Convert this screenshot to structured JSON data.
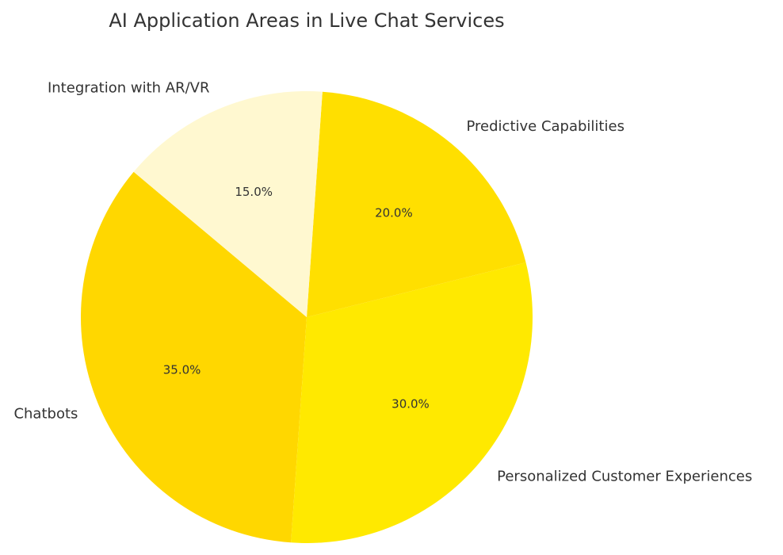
{
  "chart_data": {
    "type": "pie",
    "title": "AI Application Areas in Live Chat Services",
    "categories": [
      "Chatbots",
      "Personalized Customer Experiences",
      "Predictive Capabilities",
      "Integration with AR/VR"
    ],
    "values": [
      35,
      30,
      20,
      15
    ],
    "value_labels": [
      "35.0%",
      "30.0%",
      "20.0%",
      "15.0%"
    ],
    "colors": [
      "#ffd700",
      "#ffe900",
      "#ffdf00",
      "#fff8d0"
    ]
  }
}
